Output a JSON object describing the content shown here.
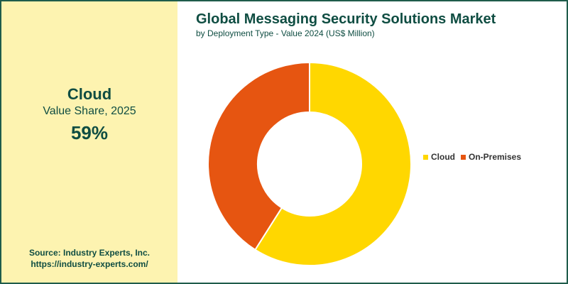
{
  "highlight": {
    "name": "Cloud",
    "metric": "Value Share, 2025",
    "value": "59%"
  },
  "source": {
    "line1": "Source: Industry Experts, Inc.",
    "line2": "https://industry-experts.com/"
  },
  "colors": {
    "cloud": "#ffd700",
    "on_premises": "#e65511",
    "frame": "#1f5c4b",
    "side_panel": "#fdf3b0",
    "text": "#0f4d42"
  },
  "chart_data": {
    "type": "pie",
    "variant": "donut",
    "title": "Global Messaging Security Solutions Market",
    "subtitle": "by Deployment Type - Value 2024 (US$ Million)",
    "categories": [
      "Cloud",
      "On-Premises"
    ],
    "values": [
      59,
      41
    ],
    "colors": [
      "#ffd700",
      "#e65511"
    ],
    "legend": "right"
  }
}
